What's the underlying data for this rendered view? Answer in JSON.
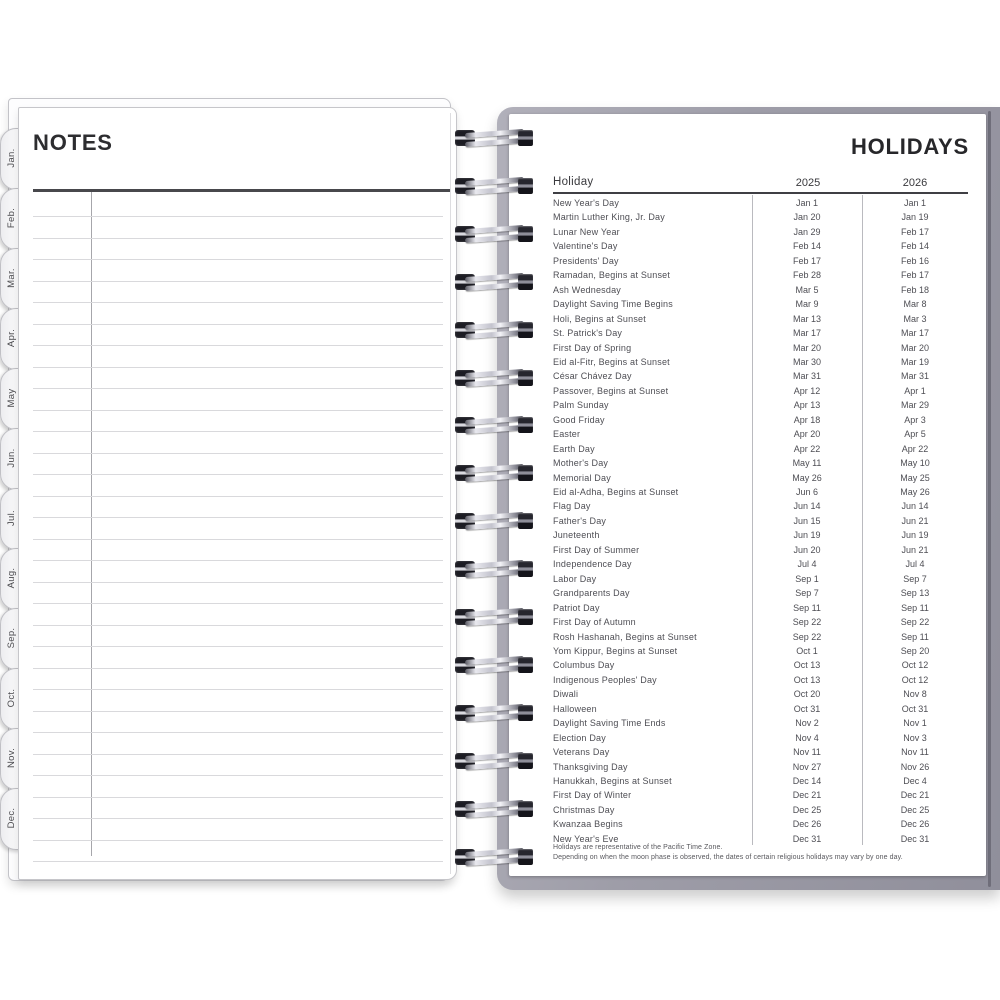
{
  "left_page": {
    "title": "NOTES",
    "tabs": [
      "Jan.",
      "Feb.",
      "Mar.",
      "Apr.",
      "May",
      "Jun.",
      "Jul.",
      "Aug.",
      "Sep.",
      "Oct.",
      "Nov.",
      "Dec."
    ]
  },
  "right_page": {
    "title": "HOLIDAYS",
    "table": {
      "columns": [
        "Holiday",
        "2025",
        "2026"
      ],
      "rows": [
        [
          "New Year's Day",
          "Jan 1",
          "Jan 1"
        ],
        [
          "Martin Luther King, Jr. Day",
          "Jan 20",
          "Jan 19"
        ],
        [
          "Lunar New Year",
          "Jan 29",
          "Feb 17"
        ],
        [
          "Valentine's Day",
          "Feb 14",
          "Feb 14"
        ],
        [
          "Presidents' Day",
          "Feb 17",
          "Feb 16"
        ],
        [
          "Ramadan, Begins at Sunset",
          "Feb 28",
          "Feb 17"
        ],
        [
          "Ash Wednesday",
          "Mar 5",
          "Feb 18"
        ],
        [
          "Daylight Saving Time Begins",
          "Mar 9",
          "Mar 8"
        ],
        [
          "Holi, Begins at Sunset",
          "Mar 13",
          "Mar 3"
        ],
        [
          "St. Patrick's Day",
          "Mar 17",
          "Mar 17"
        ],
        [
          "First Day of Spring",
          "Mar 20",
          "Mar 20"
        ],
        [
          "Eid al-Fitr, Begins at Sunset",
          "Mar 30",
          "Mar 19"
        ],
        [
          "César Chávez Day",
          "Mar 31",
          "Mar 31"
        ],
        [
          "Passover, Begins at Sunset",
          "Apr 12",
          "Apr 1"
        ],
        [
          "Palm Sunday",
          "Apr 13",
          "Mar 29"
        ],
        [
          "Good Friday",
          "Apr 18",
          "Apr 3"
        ],
        [
          "Easter",
          "Apr 20",
          "Apr 5"
        ],
        [
          "Earth Day",
          "Apr 22",
          "Apr 22"
        ],
        [
          "Mother's Day",
          "May 11",
          "May 10"
        ],
        [
          "Memorial Day",
          "May 26",
          "May 25"
        ],
        [
          "Eid al-Adha, Begins at Sunset",
          "Jun 6",
          "May 26"
        ],
        [
          "Flag Day",
          "Jun 14",
          "Jun 14"
        ],
        [
          "Father's Day",
          "Jun 15",
          "Jun 21"
        ],
        [
          "Juneteenth",
          "Jun 19",
          "Jun 19"
        ],
        [
          "First Day of Summer",
          "Jun 20",
          "Jun 21"
        ],
        [
          "Independence Day",
          "Jul 4",
          "Jul 4"
        ],
        [
          "Labor Day",
          "Sep 1",
          "Sep 7"
        ],
        [
          "Grandparents Day",
          "Sep 7",
          "Sep 13"
        ],
        [
          "Patriot Day",
          "Sep 11",
          "Sep 11"
        ],
        [
          "First Day of Autumn",
          "Sep 22",
          "Sep 22"
        ],
        [
          "Rosh Hashanah, Begins at Sunset",
          "Sep 22",
          "Sep 11"
        ],
        [
          "Yom Kippur, Begins at Sunset",
          "Oct 1",
          "Sep 20"
        ],
        [
          "Columbus Day",
          "Oct 13",
          "Oct 12"
        ],
        [
          "Indigenous Peoples' Day",
          "Oct 13",
          "Oct 12"
        ],
        [
          "Diwali",
          "Oct 20",
          "Nov 8"
        ],
        [
          "Halloween",
          "Oct 31",
          "Oct 31"
        ],
        [
          "Daylight Saving Time Ends",
          "Nov 2",
          "Nov 1"
        ],
        [
          "Election Day",
          "Nov 4",
          "Nov 3"
        ],
        [
          "Veterans Day",
          "Nov 11",
          "Nov 11"
        ],
        [
          "Thanksgiving Day",
          "Nov 27",
          "Nov 26"
        ],
        [
          "Hanukkah, Begins at Sunset",
          "Dec 14",
          "Dec 4"
        ],
        [
          "First Day of Winter",
          "Dec 21",
          "Dec 21"
        ],
        [
          "Christmas Day",
          "Dec 25",
          "Dec 25"
        ],
        [
          "Kwanzaa Begins",
          "Dec 26",
          "Dec 26"
        ],
        [
          "New Year's Eve",
          "Dec 31",
          "Dec 31"
        ]
      ]
    },
    "footnotes": [
      "Holidays are representative of the Pacific Time Zone.",
      "Depending on when the moon phase is observed, the dates of certain religious holidays may vary by one day."
    ]
  },
  "colors": {
    "cover_gray": "#9b9aa5",
    "page_white": "#ffffff",
    "text_dark": "#2d2d30",
    "rule_light": "#d9d9dc"
  }
}
